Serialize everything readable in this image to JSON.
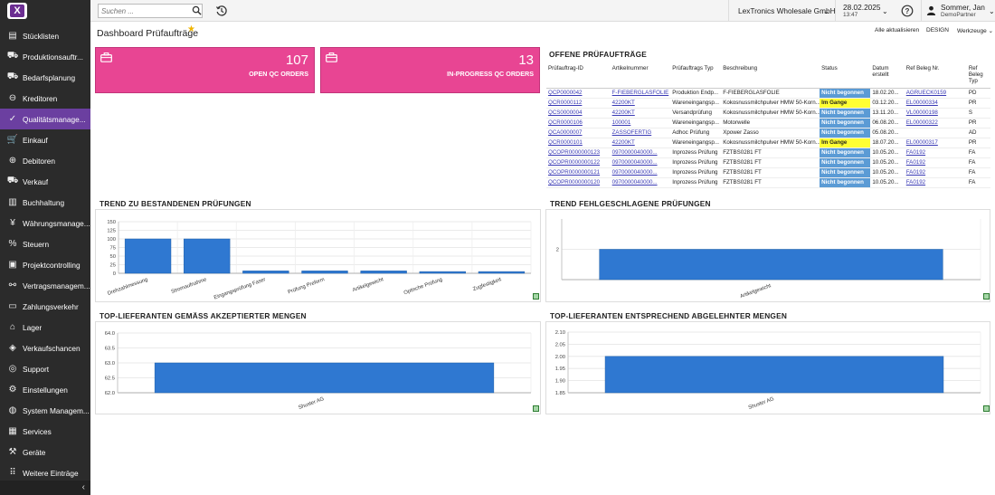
{
  "app": {
    "logo_text": "X",
    "search_placeholder": "Suchen ...",
    "company": "LexTronics Wholesale GmbH",
    "date": "28.02.2025",
    "time": "13:47",
    "user_name": "Sommer, Jan",
    "user_role": "DemoPartner"
  },
  "sidebar": {
    "items": [
      {
        "label": "Stücklisten",
        "icon": "document-icon",
        "glyph": "▤"
      },
      {
        "label": "Produktionsauftr...",
        "icon": "truck-icon",
        "glyph": "⛟"
      },
      {
        "label": "Bedarfsplanung",
        "icon": "truck-icon",
        "glyph": "⛟"
      },
      {
        "label": "Kreditoren",
        "icon": "minus-circle-icon",
        "glyph": "⊖"
      },
      {
        "label": "Qualitätsmanage...",
        "icon": "check-circle-icon",
        "glyph": "✓",
        "active": true
      },
      {
        "label": "Einkauf",
        "icon": "cart-icon",
        "glyph": "🛒"
      },
      {
        "label": "Debitoren",
        "icon": "plus-circle-icon",
        "glyph": "⊕"
      },
      {
        "label": "Verkauf",
        "icon": "truck-icon",
        "glyph": "⛟"
      },
      {
        "label": "Buchhaltung",
        "icon": "book-icon",
        "glyph": "▥"
      },
      {
        "label": "Währungsmanage...",
        "icon": "currency-icon",
        "glyph": "¥"
      },
      {
        "label": "Steuern",
        "icon": "percent-icon",
        "glyph": "%"
      },
      {
        "label": "Projektcontrolling",
        "icon": "clipboard-icon",
        "glyph": "▣"
      },
      {
        "label": "Vertragsmanagem...",
        "icon": "handshake-icon",
        "glyph": "⚯"
      },
      {
        "label": "Zahlungsverkehr",
        "icon": "money-icon",
        "glyph": "▭"
      },
      {
        "label": "Lager",
        "icon": "warehouse-icon",
        "glyph": "⌂"
      },
      {
        "label": "Verkaufschancen",
        "icon": "tag-icon",
        "glyph": "◈"
      },
      {
        "label": "Support",
        "icon": "support-icon",
        "glyph": "◎"
      },
      {
        "label": "Einstellungen",
        "icon": "gear-icon",
        "glyph": "⚙"
      },
      {
        "label": "System Managem...",
        "icon": "globe-icon",
        "glyph": "◍"
      },
      {
        "label": "Services",
        "icon": "services-icon",
        "glyph": "▦"
      },
      {
        "label": "Geräte",
        "icon": "wrench-icon",
        "glyph": "⚒"
      },
      {
        "label": "Weitere Einträge",
        "icon": "grid-icon",
        "glyph": "⠿"
      }
    ],
    "collapse_glyph": "‹"
  },
  "header": {
    "title": "Dashboard Prüfaufträge",
    "refresh_all": "Alle aktualisieren",
    "design": "DESIGN",
    "tools": "Werkzeuge"
  },
  "kpis": [
    {
      "value": "107",
      "label": "OPEN QC ORDERS"
    },
    {
      "value": "13",
      "label": "IN-PROGRESS QC ORDERS"
    }
  ],
  "qc_table": {
    "title": "OFFENE PRÜFAUFTRÄGE",
    "columns": [
      "Prüfauftrag-ID",
      "Artikelnummer",
      "Prüfauftrags Typ",
      "Beschreibung",
      "Status",
      "Datum erstellt",
      "Ref Beleg Nr.",
      "Ref Beleg Typ"
    ],
    "rows": [
      [
        "QCP0000042",
        "F-FIEBERGLASFOLIE",
        "Produktion Endp...",
        "F-FIEBERGLASFOLIE",
        "Nicht begonnen",
        "18.02.20...",
        "AGRUECK0159",
        "PD"
      ],
      [
        "QCR0000112",
        "42200KT",
        "Wareneingangsp...",
        "Kokosnussmilchpulver HMW 50-Korn...",
        "Im Gange",
        "03.12.20...",
        "EL00000334",
        "PR"
      ],
      [
        "QCS0000004",
        "42200KT",
        "Versandprüfung",
        "Kokosnussmilchpulver HMW 50-Korn...",
        "Nicht begonnen",
        "13.11.20...",
        "VL00000198",
        "S"
      ],
      [
        "QCR0000106",
        "100001",
        "Wareneingangsp...",
        "Motorwelle",
        "Nicht begonnen",
        "06.08.20...",
        "EL00000322",
        "PR"
      ],
      [
        "QCA0000007",
        "ZASSOFERTIG",
        "Adhoc Prüfung",
        "Xpower Zasso",
        "Nicht begonnen",
        "05.08.20...",
        "",
        "AD"
      ],
      [
        "QCR0000101",
        "42200KT",
        "Wareneingangsp...",
        "Kokosnussmilchpulver HMW 50-Korn...",
        "Im Gange",
        "18.07.20...",
        "EL00000317",
        "PR"
      ],
      [
        "QCOPR0000000123",
        "0970000040000...",
        "Inprozess Prüfung",
        "FZTBS0281 FT",
        "Nicht begonnen",
        "10.05.20...",
        "FA0192",
        "FA"
      ],
      [
        "QCOPR0000000122",
        "0970000040000...",
        "Inprozess Prüfung",
        "FZTBS0281 FT",
        "Nicht begonnen",
        "10.05.20...",
        "FA0192",
        "FA"
      ],
      [
        "QCOPR0000000121",
        "0970000040000...",
        "Inprozess Prüfung",
        "FZTBS0281 FT",
        "Nicht begonnen",
        "10.05.20...",
        "FA0192",
        "FA"
      ],
      [
        "QCOPR0000000120",
        "0970000040000...",
        "Inprozess Prüfung",
        "FZTBS0281 FT",
        "Nicht begonnen",
        "10.05.20...",
        "FA0192",
        "FA"
      ]
    ]
  },
  "colors": {
    "kpi": "#e84593",
    "bar": "#2f78d1",
    "status_not_started": "#5b9bd5",
    "status_in_progress": "#ffff33",
    "sidebar_active": "#6b3fa0"
  },
  "chart_data": [
    {
      "type": "bar",
      "title": "TREND ZU BESTANDENEN PRÜFUNGEN",
      "categories": [
        "Drehzahlmessung",
        "Stromaufnahme",
        "Eingangsprüfung Faser",
        "Prüfung Preform",
        "Artikelgewicht",
        "Optische Prüfung",
        "Zugfestigkeit"
      ],
      "values": [
        100,
        100,
        7,
        7,
        7,
        5,
        5
      ],
      "ylim": [
        0,
        150
      ],
      "yticks": [
        0,
        25,
        50,
        75,
        100,
        125,
        150
      ],
      "grid": true
    },
    {
      "type": "bar",
      "title": "TREND FEHLGESCHLAGENE PRÜFUNGEN",
      "categories": [
        "Artikelgewicht"
      ],
      "values": [
        2
      ],
      "ylim": [
        1.0,
        3.0
      ],
      "yticks": [
        2
      ],
      "grid": true
    },
    {
      "type": "bar",
      "title": "TOP-LIEFERANTEN GEMÄSS AKZEPTIERTER MENGEN",
      "categories": [
        "Shuster AG"
      ],
      "values": [
        63
      ],
      "ylim": [
        62.0,
        64.0
      ],
      "yticks": [
        62.0,
        62.5,
        63.0,
        63.5,
        64.0
      ],
      "grid": true
    },
    {
      "type": "bar",
      "title": "TOP-LIEFERANTEN ENTSPRECHEND ABGELEHNTER MENGEN",
      "categories": [
        "Shuster AG"
      ],
      "values": [
        2
      ],
      "ylim": [
        1.85,
        2.1
      ],
      "yticks": [
        1.85,
        1.9,
        1.95,
        2.0,
        2.05,
        2.1
      ],
      "grid": true
    }
  ]
}
